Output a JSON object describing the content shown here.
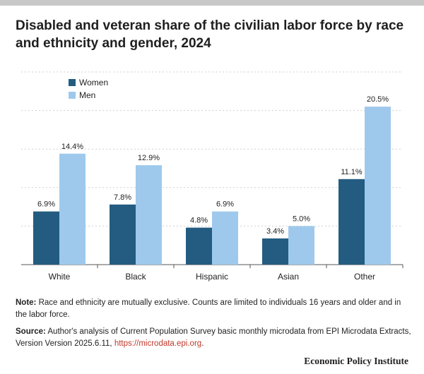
{
  "title": "Disabled and veteran share of the civilian labor force by race and ethnicity and gender, 2024",
  "colors": {
    "women": "#235c80",
    "men": "#9ec9ec",
    "grid": "#cfcfcf",
    "axis": "#555555",
    "link": "#c0392b"
  },
  "chart_data": {
    "type": "bar",
    "categories": [
      "White",
      "Black",
      "Hispanic",
      "Asian",
      "Other"
    ],
    "series": [
      {
        "name": "Women",
        "values": [
          6.9,
          7.8,
          4.8,
          3.4,
          11.1
        ],
        "labels": [
          "6.9%",
          "7.8%",
          "4.8%",
          "3.4%",
          "11.1%"
        ]
      },
      {
        "name": "Men",
        "values": [
          14.4,
          12.9,
          6.9,
          5.0,
          20.5
        ],
        "labels": [
          "14.4%",
          "12.9%",
          "6.9%",
          "5.0%",
          "20.5%"
        ]
      }
    ],
    "ylim": [
      0,
      25
    ],
    "grid_values": [
      5,
      10,
      15,
      20,
      25
    ],
    "legend_position": "top-left",
    "xlabel": "",
    "ylabel": ""
  },
  "notes": {
    "note_label": "Note:",
    "note_text": " Race and ethnicity are mutually exclusive. Counts are limited to individuals 16 years and older and in the labor force.",
    "source_label": "Source:",
    "source_text": " Author's analysis of Current Population Survey basic monthly microdata from EPI Microdata Extracts, Version Version 2025.6.11, ",
    "source_link": "https://microdata.epi.org",
    "source_end": "."
  },
  "brand": "Economic Policy Institute"
}
